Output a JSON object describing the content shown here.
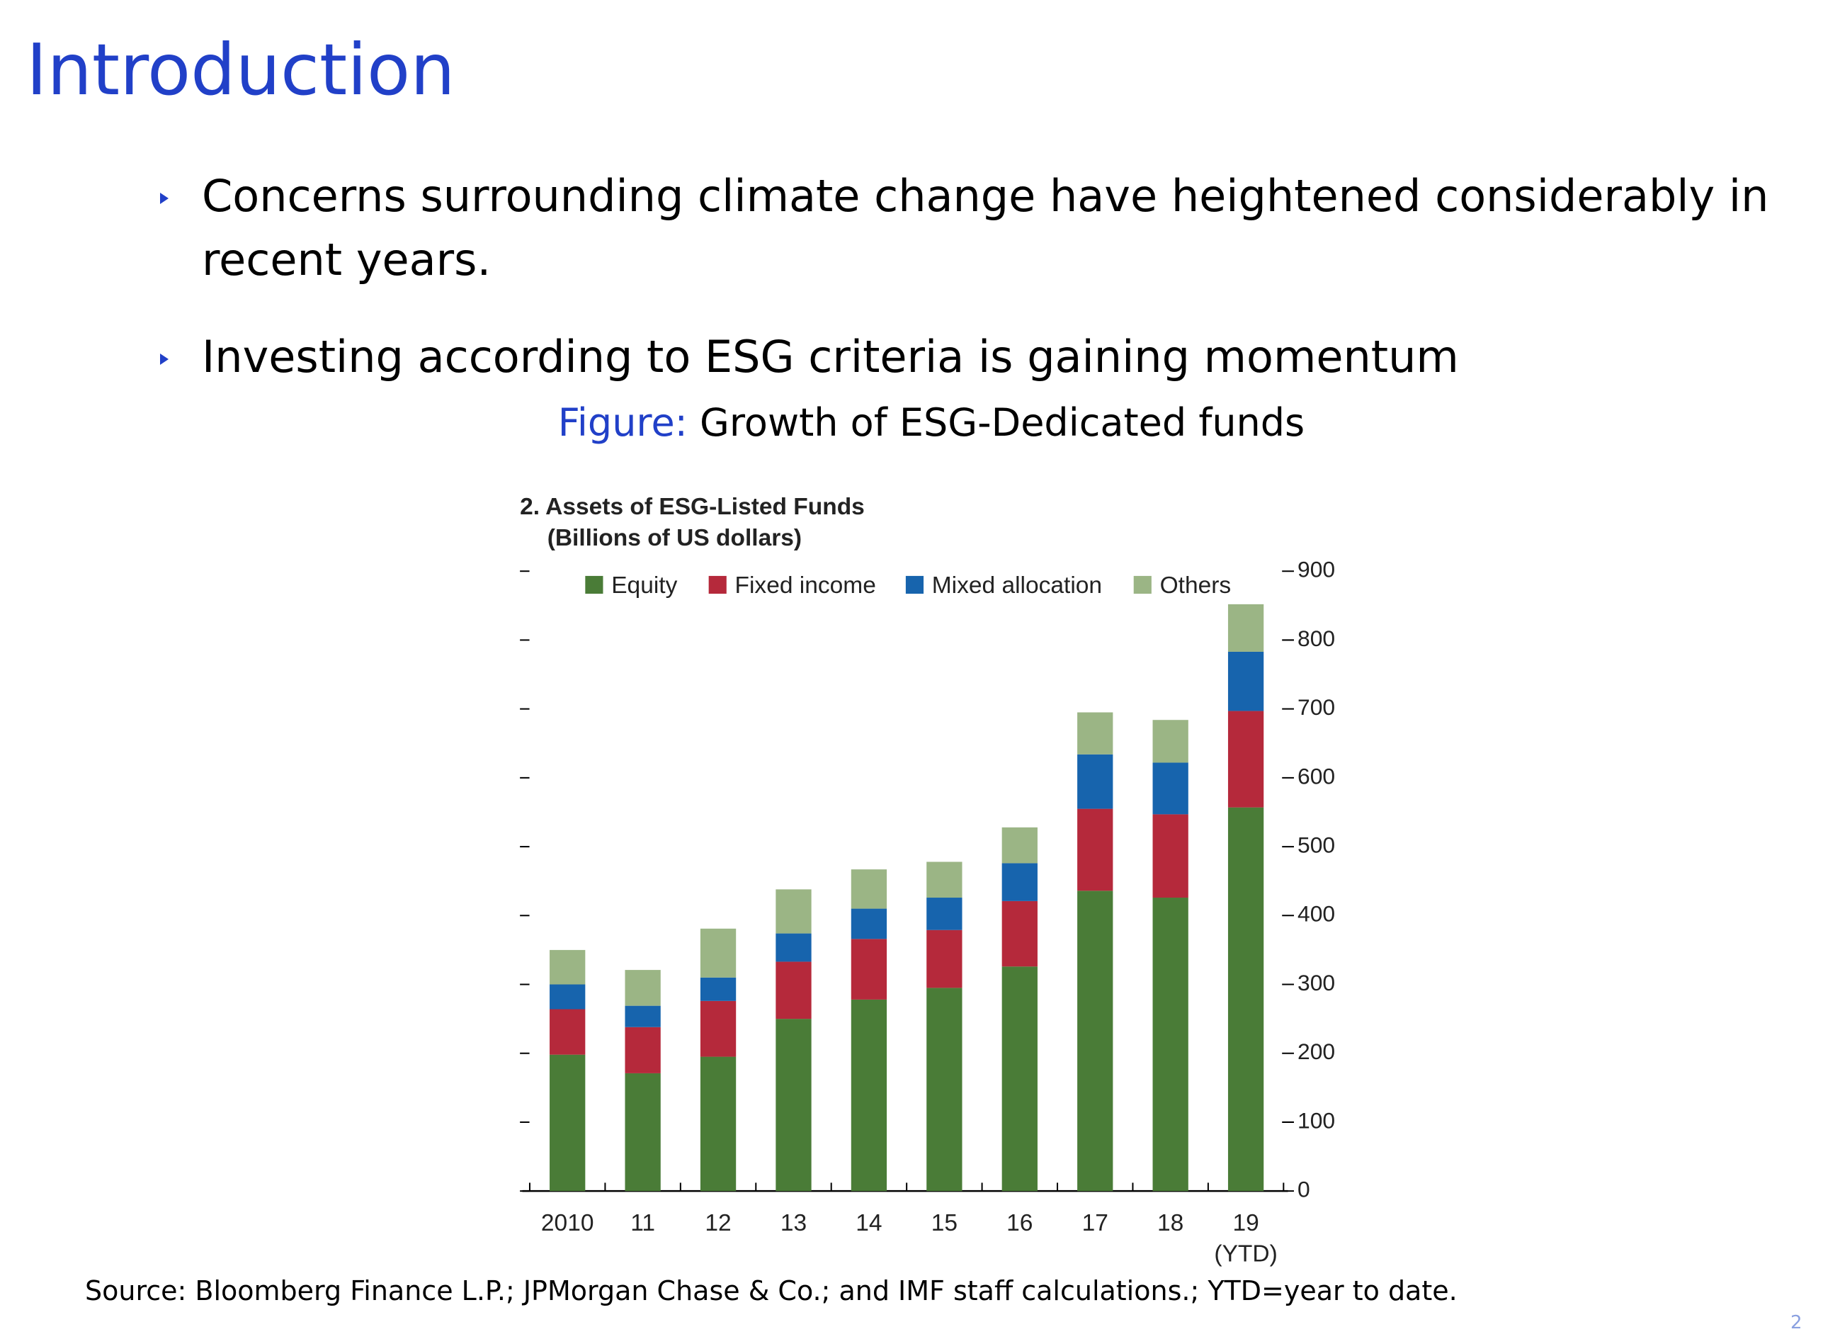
{
  "slide": {
    "title": "Introduction",
    "bullets": [
      "Concerns surrounding climate change have heightened considerably in recent years.",
      "Investing according to ESG criteria is gaining momentum"
    ],
    "figure_label": "Figure:",
    "figure_caption": "Growth of ESG-Dedicated funds",
    "source": "Source: Bloomberg Finance L.P.; JPMorgan Chase & Co.; and IMF staff calculations.; YTD=year to date.",
    "page_number": 2
  },
  "chart_data": {
    "type": "stacked_bar",
    "title": "2. Assets of ESG-Listed Funds",
    "subtitle": "(Billions of US dollars)",
    "categories": [
      "2010",
      "11",
      "12",
      "13",
      "14",
      "15",
      "16",
      "17",
      "18",
      "19\n(YTD)"
    ],
    "series": [
      {
        "name": "Equity",
        "color": "#4a7c37",
        "values": [
          198,
          171,
          195,
          250,
          278,
          295,
          326,
          436,
          426,
          557
        ]
      },
      {
        "name": "Fixed income",
        "color": "#b5293b",
        "values": [
          66,
          67,
          81,
          83,
          88,
          84,
          95,
          119,
          121,
          140
        ]
      },
      {
        "name": "Mixed allocation",
        "color": "#1764ad",
        "values": [
          36,
          31,
          34,
          41,
          44,
          47,
          55,
          79,
          75,
          86
        ]
      },
      {
        "name": "Others",
        "color": "#9bb585",
        "values": [
          50,
          52,
          71,
          64,
          57,
          52,
          52,
          61,
          62,
          69
        ]
      }
    ],
    "ylim": [
      0,
      900
    ],
    "yticks": [
      0,
      100,
      200,
      300,
      400,
      500,
      600,
      700,
      800,
      900
    ],
    "legend": "top"
  }
}
